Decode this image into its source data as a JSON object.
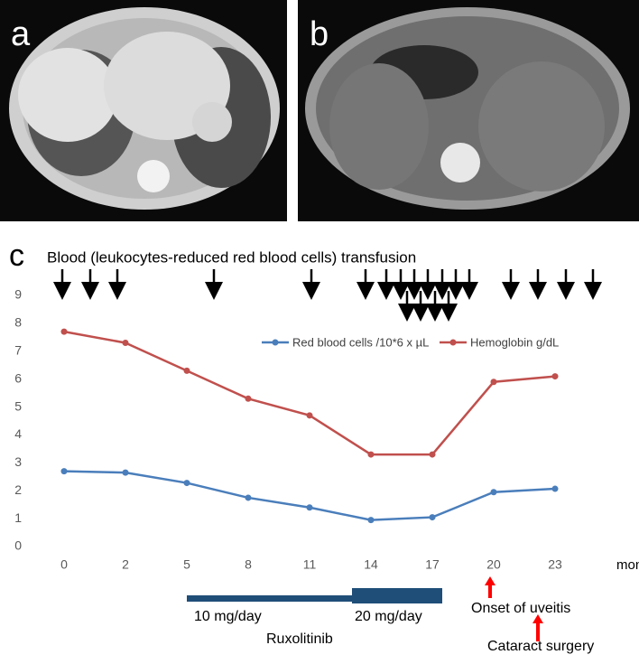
{
  "images": [
    {
      "label": "a"
    },
    {
      "label": "b"
    }
  ],
  "chart_data": {
    "type": "line",
    "panel_label": "c",
    "title": "Blood (leukocytes-reduced red blood cells) transfusion",
    "categories": [
      "0",
      "2",
      "5",
      "8",
      "11",
      "14",
      "17",
      "20",
      "23"
    ],
    "xlabel": "months",
    "ylim": [
      0,
      9
    ],
    "yticks": [
      0,
      1,
      2,
      3,
      4,
      5,
      6,
      7,
      8,
      9
    ],
    "legend": "top-right",
    "series": [
      {
        "name": "Red blood cells /10*6 x µL",
        "color": "#4a7ebb",
        "values": [
          2.7,
          2.65,
          2.28,
          1.75,
          1.4,
          0.95,
          1.05,
          1.95,
          2.07
        ]
      },
      {
        "name": "Hemoglobin g/dL",
        "color": "#c0504d",
        "values": [
          7.7,
          7.3,
          6.3,
          5.3,
          4.7,
          3.3,
          3.3,
          5.9,
          6.1
        ]
      }
    ],
    "annotations": [
      "10 mg/day",
      "20 mg/day",
      "Ruxolitinib",
      "Onset of uveitis",
      "Cataract surgery"
    ]
  }
}
